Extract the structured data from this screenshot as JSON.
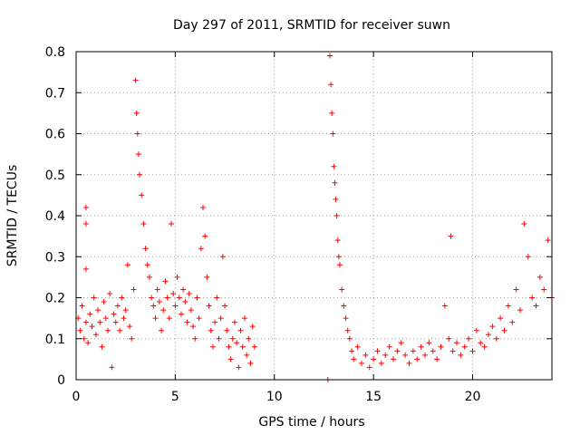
{
  "chart_data": {
    "type": "scatter",
    "title": "Day 297 of 2011, SRMTID for receiver suwn",
    "xlabel": "GPS time / hours",
    "ylabel": "SRMTID / TECUs",
    "xlim": [
      0,
      24
    ],
    "ylim": [
      0,
      0.8
    ],
    "xticks": [
      0,
      5,
      10,
      15,
      20
    ],
    "xtick_labels": [
      "0",
      "5",
      "10",
      "15",
      "20"
    ],
    "yticks": [
      0,
      0.1,
      0.2,
      0.3,
      0.4,
      0.5,
      0.6,
      0.7,
      0.8
    ],
    "ytick_labels": [
      "0",
      "0.1",
      "0.2",
      "0.3",
      "0.4",
      "0.5",
      "0.6",
      "0.7",
      "0.8"
    ],
    "grid": true,
    "marker": "+",
    "series": [
      {
        "name": "SRMTID",
        "color": "#ff0000",
        "points": [
          [
            0.1,
            0.15
          ],
          [
            0.2,
            0.12
          ],
          [
            0.3,
            0.18
          ],
          [
            0.4,
            0.1
          ],
          [
            0.5,
            0.14
          ],
          [
            0.5,
            0.42
          ],
          [
            0.5,
            0.38
          ],
          [
            0.5,
            0.27
          ],
          [
            0.6,
            0.09
          ],
          [
            0.7,
            0.16
          ],
          [
            0.8,
            0.13
          ],
          [
            0.9,
            0.2
          ],
          [
            1.0,
            0.11
          ],
          [
            1.1,
            0.17
          ],
          [
            1.2,
            0.14
          ],
          [
            1.3,
            0.08
          ],
          [
            1.4,
            0.19
          ],
          [
            1.5,
            0.15
          ],
          [
            1.6,
            0.12
          ],
          [
            1.7,
            0.21
          ],
          [
            1.8,
            0.03
          ],
          [
            1.9,
            0.16
          ],
          [
            2.0,
            0.14
          ],
          [
            2.1,
            0.18
          ],
          [
            2.2,
            0.12
          ],
          [
            2.3,
            0.2
          ],
          [
            2.4,
            0.15
          ],
          [
            2.5,
            0.17
          ],
          [
            2.6,
            0.28
          ],
          [
            2.7,
            0.13
          ],
          [
            2.8,
            0.1
          ],
          [
            2.9,
            0.22
          ],
          [
            3.0,
            0.73
          ],
          [
            3.05,
            0.65
          ],
          [
            3.1,
            0.6
          ],
          [
            3.15,
            0.55
          ],
          [
            3.2,
            0.5
          ],
          [
            3.3,
            0.45
          ],
          [
            3.4,
            0.38
          ],
          [
            3.5,
            0.32
          ],
          [
            3.6,
            0.28
          ],
          [
            3.7,
            0.25
          ],
          [
            3.8,
            0.2
          ],
          [
            3.9,
            0.18
          ],
          [
            4.0,
            0.15
          ],
          [
            4.1,
            0.22
          ],
          [
            4.2,
            0.19
          ],
          [
            4.3,
            0.12
          ],
          [
            4.4,
            0.17
          ],
          [
            4.5,
            0.24
          ],
          [
            4.6,
            0.2
          ],
          [
            4.7,
            0.15
          ],
          [
            4.8,
            0.38
          ],
          [
            4.9,
            0.21
          ],
          [
            5.0,
            0.18
          ],
          [
            5.1,
            0.25
          ],
          [
            5.2,
            0.2
          ],
          [
            5.3,
            0.16
          ],
          [
            5.4,
            0.22
          ],
          [
            5.5,
            0.19
          ],
          [
            5.6,
            0.14
          ],
          [
            5.7,
            0.21
          ],
          [
            5.8,
            0.17
          ],
          [
            5.9,
            0.13
          ],
          [
            6.0,
            0.1
          ],
          [
            6.1,
            0.2
          ],
          [
            6.2,
            0.15
          ],
          [
            6.3,
            0.32
          ],
          [
            6.4,
            0.42
          ],
          [
            6.5,
            0.35
          ],
          [
            6.6,
            0.25
          ],
          [
            6.7,
            0.18
          ],
          [
            6.8,
            0.12
          ],
          [
            6.9,
            0.08
          ],
          [
            7.0,
            0.14
          ],
          [
            7.1,
            0.2
          ],
          [
            7.2,
            0.1
          ],
          [
            7.3,
            0.15
          ],
          [
            7.4,
            0.3
          ],
          [
            7.5,
            0.18
          ],
          [
            7.6,
            0.12
          ],
          [
            7.7,
            0.08
          ],
          [
            7.8,
            0.05
          ],
          [
            7.9,
            0.1
          ],
          [
            8.0,
            0.14
          ],
          [
            8.1,
            0.09
          ],
          [
            8.2,
            0.03
          ],
          [
            8.3,
            0.12
          ],
          [
            8.4,
            0.08
          ],
          [
            8.5,
            0.15
          ],
          [
            8.6,
            0.06
          ],
          [
            8.7,
            0.1
          ],
          [
            8.8,
            0.04
          ],
          [
            8.9,
            0.13
          ],
          [
            9.0,
            0.08
          ],
          [
            12.7,
            0.0
          ],
          [
            12.8,
            0.79
          ],
          [
            12.85,
            0.72
          ],
          [
            12.9,
            0.65
          ],
          [
            12.95,
            0.6
          ],
          [
            13.0,
            0.52
          ],
          [
            13.05,
            0.48
          ],
          [
            13.1,
            0.44
          ],
          [
            13.15,
            0.4
          ],
          [
            13.2,
            0.34
          ],
          [
            13.25,
            0.3
          ],
          [
            13.3,
            0.28
          ],
          [
            13.4,
            0.22
          ],
          [
            13.5,
            0.18
          ],
          [
            13.6,
            0.15
          ],
          [
            13.7,
            0.12
          ],
          [
            13.8,
            0.1
          ],
          [
            13.9,
            0.07
          ],
          [
            14.0,
            0.05
          ],
          [
            14.2,
            0.08
          ],
          [
            14.4,
            0.04
          ],
          [
            14.6,
            0.06
          ],
          [
            14.8,
            0.03
          ],
          [
            15.0,
            0.05
          ],
          [
            15.2,
            0.07
          ],
          [
            15.4,
            0.04
          ],
          [
            15.6,
            0.06
          ],
          [
            15.8,
            0.08
          ],
          [
            16.0,
            0.05
          ],
          [
            16.2,
            0.07
          ],
          [
            16.4,
            0.09
          ],
          [
            16.6,
            0.06
          ],
          [
            16.8,
            0.04
          ],
          [
            17.0,
            0.07
          ],
          [
            17.2,
            0.05
          ],
          [
            17.4,
            0.08
          ],
          [
            17.6,
            0.06
          ],
          [
            17.8,
            0.09
          ],
          [
            18.0,
            0.07
          ],
          [
            18.2,
            0.05
          ],
          [
            18.4,
            0.08
          ],
          [
            18.6,
            0.18
          ],
          [
            18.8,
            0.1
          ],
          [
            18.9,
            0.35
          ],
          [
            19.0,
            0.07
          ],
          [
            19.2,
            0.09
          ],
          [
            19.4,
            0.06
          ],
          [
            19.6,
            0.08
          ],
          [
            19.8,
            0.1
          ],
          [
            20.0,
            0.07
          ],
          [
            20.2,
            0.12
          ],
          [
            20.4,
            0.09
          ],
          [
            20.6,
            0.08
          ],
          [
            20.8,
            0.11
          ],
          [
            21.0,
            0.13
          ],
          [
            21.2,
            0.1
          ],
          [
            21.4,
            0.15
          ],
          [
            21.6,
            0.12
          ],
          [
            21.8,
            0.18
          ],
          [
            22.0,
            0.14
          ],
          [
            22.2,
            0.22
          ],
          [
            22.4,
            0.17
          ],
          [
            22.6,
            0.38
          ],
          [
            22.8,
            0.3
          ],
          [
            23.0,
            0.2
          ],
          [
            23.2,
            0.18
          ],
          [
            23.4,
            0.25
          ],
          [
            23.6,
            0.22
          ],
          [
            23.8,
            0.34
          ],
          [
            24.0,
            0.2
          ]
        ]
      }
    ]
  }
}
